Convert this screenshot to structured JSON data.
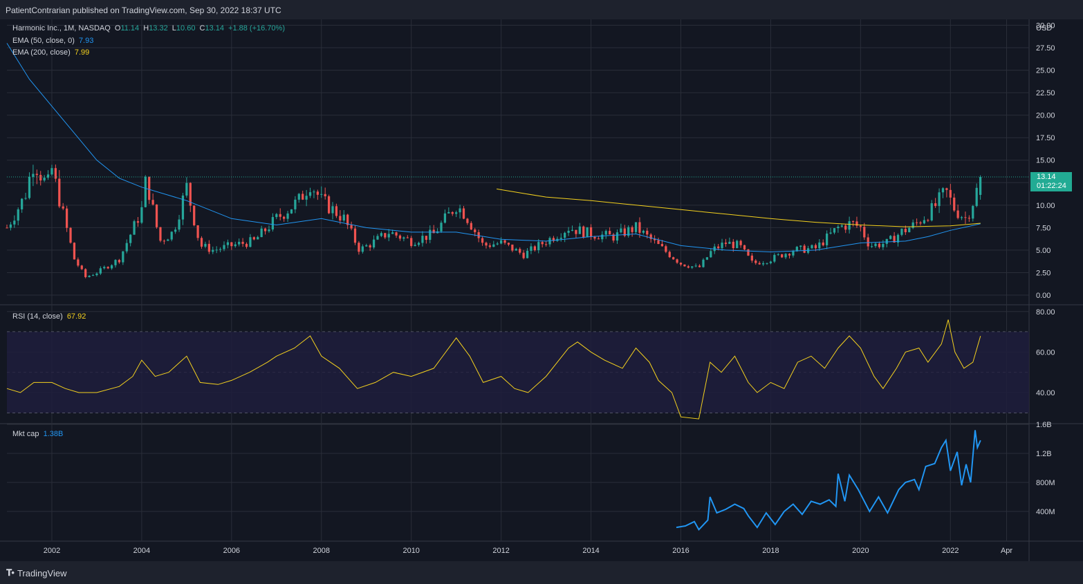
{
  "header": {
    "publish_text": "PatientContrarian published on TradingView.com, Sep 30, 2022 18:37 UTC"
  },
  "legend": {
    "symbol": "Harmonic Inc., 1M, NASDAQ",
    "o_label": "O",
    "o_value": "11.14",
    "h_label": "H",
    "h_value": "13.32",
    "l_label": "L",
    "l_value": "10.60",
    "c_label": "C",
    "c_value": "13.14",
    "change": "+1.88 (+16.70%)",
    "ema50_label": "EMA (50, close, 0)",
    "ema50_value": "7.93",
    "ema200_label": "EMA (200, close)",
    "ema200_value": "7.99",
    "rsi_label": "RSI (14, close)",
    "rsi_value": "67.92",
    "mktcap_label": "Mkt cap",
    "mktcap_value": "1.38B"
  },
  "price_label": {
    "price": "13.14",
    "countdown": "01:22:24"
  },
  "currency": "USD",
  "footer": {
    "brand": "TradingView"
  },
  "colors": {
    "bg": "#131722",
    "grid": "#2a2e39",
    "up": "#26a69a",
    "down": "#ef5350",
    "ema50": "#2196f3",
    "ema200": "#f5d21e",
    "rsi": "#f5d21e",
    "mktcap": "#2196f3",
    "rsi_band": "#1f1d3c"
  },
  "chart_data": [
    {
      "type": "candlestick",
      "title": "Harmonic Inc., 1M, NASDAQ",
      "x_range": [
        2001.0,
        2023.75
      ],
      "x_tick_labels": [
        {
          "x": 2002,
          "label": "2002"
        },
        {
          "x": 2004,
          "label": "2004"
        },
        {
          "x": 2006,
          "label": "2006"
        },
        {
          "x": 2008,
          "label": "2008"
        },
        {
          "x": 2010,
          "label": "2010"
        },
        {
          "x": 2012,
          "label": "2012"
        },
        {
          "x": 2014,
          "label": "2014"
        },
        {
          "x": 2016,
          "label": "2016"
        },
        {
          "x": 2018,
          "label": "2018"
        },
        {
          "x": 2020,
          "label": "2020"
        },
        {
          "x": 2022,
          "label": "2022"
        },
        {
          "x": 2023.25,
          "label": "Apr"
        }
      ],
      "ylim": [
        -1,
        30.5
      ],
      "y_ticks": [
        "30.00",
        "27.50",
        "25.00",
        "22.50",
        "20.00",
        "17.50",
        "15.00",
        "12.50",
        "10.00",
        "7.50",
        "5.00",
        "2.50",
        "0.00"
      ],
      "close_anchors": [
        [
          2001.0,
          7.5
        ],
        [
          2001.4,
          11.0
        ],
        [
          2001.6,
          15.0
        ],
        [
          2001.9,
          12.0
        ],
        [
          2002.0,
          14.0
        ],
        [
          2002.25,
          9.0
        ],
        [
          2002.5,
          4.0
        ],
        [
          2002.75,
          2.0
        ],
        [
          2003.0,
          2.5
        ],
        [
          2003.5,
          4.0
        ],
        [
          2004.0,
          9.5
        ],
        [
          2004.1,
          13.0
        ],
        [
          2004.4,
          6.0
        ],
        [
          2004.7,
          7.0
        ],
        [
          2005.0,
          12.0
        ],
        [
          2005.3,
          5.5
        ],
        [
          2005.6,
          5.0
        ],
        [
          2006.0,
          5.5
        ],
        [
          2006.5,
          6.0
        ],
        [
          2007.0,
          8.5
        ],
        [
          2007.5,
          10.5
        ],
        [
          2007.75,
          12.5
        ],
        [
          2008.0,
          10.5
        ],
        [
          2008.5,
          8.5
        ],
        [
          2008.85,
          5.0
        ],
        [
          2009.2,
          6.0
        ],
        [
          2009.5,
          7.0
        ],
        [
          2010.0,
          6.0
        ],
        [
          2010.5,
          6.8
        ],
        [
          2011.0,
          10.0
        ],
        [
          2011.2,
          9.0
        ],
        [
          2011.6,
          5.5
        ],
        [
          2012.0,
          5.8
        ],
        [
          2012.5,
          4.5
        ],
        [
          2013.0,
          6.0
        ],
        [
          2013.5,
          7.5
        ],
        [
          2014.0,
          6.8
        ],
        [
          2014.5,
          6.5
        ],
        [
          2015.0,
          7.5
        ],
        [
          2015.5,
          5.5
        ],
        [
          2016.0,
          3.5
        ],
        [
          2016.4,
          3.0
        ],
        [
          2016.7,
          5.0
        ],
        [
          2017.0,
          5.8
        ],
        [
          2017.3,
          5.5
        ],
        [
          2017.6,
          3.5
        ],
        [
          2018.0,
          4.0
        ],
        [
          2018.5,
          5.0
        ],
        [
          2019.0,
          5.2
        ],
        [
          2019.5,
          7.5
        ],
        [
          2019.8,
          8.0
        ],
        [
          2020.0,
          7.5
        ],
        [
          2020.2,
          5.5
        ],
        [
          2020.6,
          5.8
        ],
        [
          2020.9,
          7.0
        ],
        [
          2021.2,
          7.8
        ],
        [
          2021.6,
          9.5
        ],
        [
          2021.9,
          11.5
        ],
        [
          2022.1,
          9.5
        ],
        [
          2022.35,
          8.5
        ],
        [
          2022.55,
          11.0
        ],
        [
          2022.67,
          13.14
        ]
      ],
      "last_candle": {
        "open": 11.14,
        "high": 13.32,
        "low": 10.6,
        "close": 13.14
      },
      "ema50": [
        [
          2001.0,
          28.0
        ],
        [
          2001.5,
          24.0
        ],
        [
          2002.0,
          21.0
        ],
        [
          2002.5,
          18.0
        ],
        [
          2003.0,
          15.0
        ],
        [
          2003.5,
          13.0
        ],
        [
          2004.0,
          12.0
        ],
        [
          2005.0,
          10.5
        ],
        [
          2006.0,
          8.5
        ],
        [
          2007.0,
          7.8
        ],
        [
          2008.0,
          8.5
        ],
        [
          2009.0,
          7.5
        ],
        [
          2010.0,
          7.0
        ],
        [
          2011.0,
          7.0
        ],
        [
          2012.0,
          6.2
        ],
        [
          2013.0,
          6.0
        ],
        [
          2014.0,
          6.5
        ],
        [
          2015.0,
          6.8
        ],
        [
          2016.0,
          5.5
        ],
        [
          2017.0,
          5.0
        ],
        [
          2018.0,
          4.8
        ],
        [
          2019.0,
          5.0
        ],
        [
          2020.0,
          5.8
        ],
        [
          2021.0,
          6.0
        ],
        [
          2021.5,
          6.5
        ],
        [
          2022.0,
          7.2
        ],
        [
          2022.67,
          7.93
        ]
      ],
      "ema200": [
        [
          2011.9,
          11.8
        ],
        [
          2012.5,
          11.3
        ],
        [
          2013.0,
          10.9
        ],
        [
          2014.0,
          10.5
        ],
        [
          2015.0,
          10.0
        ],
        [
          2016.0,
          9.5
        ],
        [
          2017.0,
          9.0
        ],
        [
          2018.0,
          8.5
        ],
        [
          2019.0,
          8.1
        ],
        [
          2020.0,
          7.8
        ],
        [
          2021.0,
          7.6
        ],
        [
          2022.0,
          7.7
        ],
        [
          2022.67,
          7.99
        ]
      ],
      "last_close": 13.14
    },
    {
      "type": "line",
      "title": "RSI (14, close)",
      "ylim": [
        25,
        83
      ],
      "y_ticks": [
        "80.00",
        "60.00",
        "40.00"
      ],
      "band": [
        30,
        70
      ],
      "midline": 50,
      "values": [
        [
          2001.0,
          42
        ],
        [
          2001.3,
          40
        ],
        [
          2001.6,
          45
        ],
        [
          2002.0,
          45
        ],
        [
          2002.3,
          42
        ],
        [
          2002.6,
          40
        ],
        [
          2003.0,
          40
        ],
        [
          2003.5,
          43
        ],
        [
          2003.8,
          48
        ],
        [
          2004.0,
          56
        ],
        [
          2004.3,
          48
        ],
        [
          2004.6,
          50
        ],
        [
          2005.0,
          58
        ],
        [
          2005.3,
          45
        ],
        [
          2005.7,
          44
        ],
        [
          2006.0,
          46
        ],
        [
          2006.4,
          50
        ],
        [
          2006.8,
          55
        ],
        [
          2007.0,
          58
        ],
        [
          2007.4,
          62
        ],
        [
          2007.75,
          68
        ],
        [
          2008.0,
          58
        ],
        [
          2008.4,
          52
        ],
        [
          2008.8,
          42
        ],
        [
          2009.2,
          45
        ],
        [
          2009.6,
          50
        ],
        [
          2010.0,
          48
        ],
        [
          2010.5,
          52
        ],
        [
          2011.0,
          67
        ],
        [
          2011.3,
          58
        ],
        [
          2011.6,
          45
        ],
        [
          2012.0,
          48
        ],
        [
          2012.3,
          42
        ],
        [
          2012.6,
          40
        ],
        [
          2013.0,
          48
        ],
        [
          2013.5,
          62
        ],
        [
          2013.7,
          65
        ],
        [
          2014.0,
          60
        ],
        [
          2014.3,
          56
        ],
        [
          2014.7,
          52
        ],
        [
          2015.0,
          62
        ],
        [
          2015.3,
          55
        ],
        [
          2015.5,
          46
        ],
        [
          2015.8,
          40
        ],
        [
          2016.0,
          28
        ],
        [
          2016.4,
          27
        ],
        [
          2016.65,
          55
        ],
        [
          2016.9,
          50
        ],
        [
          2017.2,
          58
        ],
        [
          2017.5,
          45
        ],
        [
          2017.7,
          40
        ],
        [
          2018.0,
          45
        ],
        [
          2018.3,
          42
        ],
        [
          2018.6,
          55
        ],
        [
          2018.9,
          58
        ],
        [
          2019.2,
          52
        ],
        [
          2019.5,
          62
        ],
        [
          2019.75,
          68
        ],
        [
          2020.0,
          62
        ],
        [
          2020.3,
          48
        ],
        [
          2020.5,
          42
        ],
        [
          2020.8,
          52
        ],
        [
          2021.0,
          60
        ],
        [
          2021.3,
          62
        ],
        [
          2021.5,
          55
        ],
        [
          2021.8,
          64
        ],
        [
          2021.95,
          76
        ],
        [
          2022.1,
          60
        ],
        [
          2022.3,
          52
        ],
        [
          2022.5,
          55
        ],
        [
          2022.67,
          67.92
        ]
      ]
    },
    {
      "type": "line",
      "title": "Mkt cap",
      "ylim_millions": [
        0,
        1600
      ],
      "y_ticks": [
        "1.6B",
        "1.2B",
        "800M",
        "400M"
      ],
      "values_millions": [
        [
          2015.9,
          180
        ],
        [
          2016.1,
          200
        ],
        [
          2016.3,
          260
        ],
        [
          2016.4,
          150
        ],
        [
          2016.6,
          280
        ],
        [
          2016.65,
          600
        ],
        [
          2016.8,
          380
        ],
        [
          2017.0,
          430
        ],
        [
          2017.2,
          500
        ],
        [
          2017.4,
          440
        ],
        [
          2017.5,
          340
        ],
        [
          2017.7,
          180
        ],
        [
          2017.9,
          380
        ],
        [
          2018.1,
          220
        ],
        [
          2018.3,
          400
        ],
        [
          2018.5,
          500
        ],
        [
          2018.7,
          360
        ],
        [
          2018.9,
          540
        ],
        [
          2019.1,
          500
        ],
        [
          2019.3,
          560
        ],
        [
          2019.45,
          470
        ],
        [
          2019.5,
          920
        ],
        [
          2019.65,
          540
        ],
        [
          2019.75,
          900
        ],
        [
          2019.95,
          700
        ],
        [
          2020.2,
          400
        ],
        [
          2020.4,
          600
        ],
        [
          2020.6,
          380
        ],
        [
          2020.85,
          700
        ],
        [
          2021.0,
          800
        ],
        [
          2021.2,
          840
        ],
        [
          2021.3,
          700
        ],
        [
          2021.45,
          1020
        ],
        [
          2021.65,
          1060
        ],
        [
          2021.8,
          1280
        ],
        [
          2021.9,
          1380
        ],
        [
          2022.0,
          960
        ],
        [
          2022.15,
          1220
        ],
        [
          2022.25,
          760
        ],
        [
          2022.35,
          1050
        ],
        [
          2022.45,
          800
        ],
        [
          2022.55,
          1520
        ],
        [
          2022.6,
          1280
        ],
        [
          2022.67,
          1380
        ]
      ]
    }
  ]
}
